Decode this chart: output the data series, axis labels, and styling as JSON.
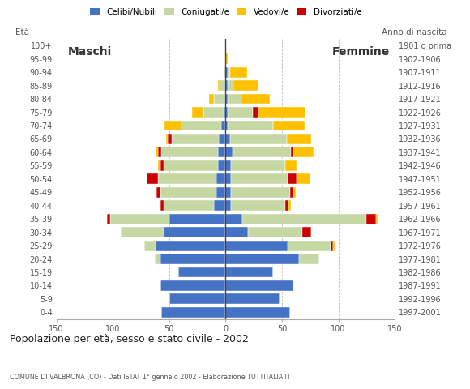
{
  "age_groups": [
    "100+",
    "95-99",
    "90-94",
    "85-89",
    "80-84",
    "75-79",
    "70-74",
    "65-69",
    "60-64",
    "55-59",
    "50-54",
    "45-49",
    "40-44",
    "35-39",
    "30-34",
    "25-29",
    "20-24",
    "15-19",
    "10-14",
    "5-9",
    "0-4"
  ],
  "birth_years": [
    "1901 o prima",
    "1902-1906",
    "1907-1911",
    "1912-1916",
    "1917-1921",
    "1922-1926",
    "1927-1931",
    "1932-1936",
    "1937-1941",
    "1942-1946",
    "1947-1951",
    "1952-1956",
    "1957-1961",
    "1962-1966",
    "1967-1971",
    "1972-1976",
    "1977-1981",
    "1982-1986",
    "1987-1991",
    "1992-1996",
    "1997-2001"
  ],
  "males_celibe": [
    0,
    0,
    0,
    0,
    0,
    2,
    4,
    6,
    7,
    7,
    8,
    8,
    10,
    50,
    55,
    62,
    58,
    42,
    58,
    50,
    57
  ],
  "males_coniugato": [
    0,
    0,
    2,
    5,
    10,
    18,
    35,
    42,
    50,
    48,
    52,
    50,
    45,
    52,
    38,
    10,
    5,
    0,
    0,
    0,
    0
  ],
  "males_vedovo": [
    0,
    0,
    0,
    2,
    5,
    10,
    15,
    2,
    2,
    2,
    0,
    0,
    0,
    0,
    0,
    0,
    0,
    0,
    0,
    0,
    0
  ],
  "males_divorziato": [
    0,
    0,
    0,
    0,
    0,
    0,
    0,
    3,
    3,
    3,
    10,
    3,
    3,
    3,
    0,
    0,
    0,
    0,
    0,
    0,
    0
  ],
  "females_nubile": [
    0,
    0,
    2,
    2,
    2,
    2,
    2,
    4,
    6,
    5,
    5,
    5,
    5,
    15,
    20,
    55,
    65,
    42,
    60,
    48,
    57
  ],
  "females_coniugata": [
    0,
    0,
    2,
    5,
    12,
    22,
    40,
    50,
    52,
    48,
    50,
    52,
    48,
    110,
    48,
    38,
    18,
    0,
    0,
    0,
    0
  ],
  "females_vedova": [
    0,
    2,
    15,
    22,
    25,
    42,
    28,
    22,
    18,
    10,
    12,
    2,
    2,
    2,
    0,
    2,
    0,
    0,
    0,
    0,
    0
  ],
  "females_divorziata": [
    0,
    0,
    0,
    0,
    0,
    5,
    0,
    0,
    2,
    0,
    8,
    3,
    3,
    8,
    8,
    2,
    0,
    0,
    0,
    0,
    0
  ],
  "colors": {
    "celibe": "#4472c4",
    "coniugato": "#c5d8a4",
    "vedovo": "#ffc000",
    "divorziato": "#cc0000"
  },
  "xlim": 150,
  "title": "Popolazione per età, sesso e stato civile - 2002",
  "subtitle": "COMUNE DI VALBRONA (CO) - Dati ISTAT 1° gennaio 2002 - Elaborazione TUTTITALIA.IT",
  "legend_labels": [
    "Celibi/Nubili",
    "Coniugati/e",
    "Vedovi/e",
    "Divorziati/e"
  ],
  "bg_color": "#ffffff"
}
